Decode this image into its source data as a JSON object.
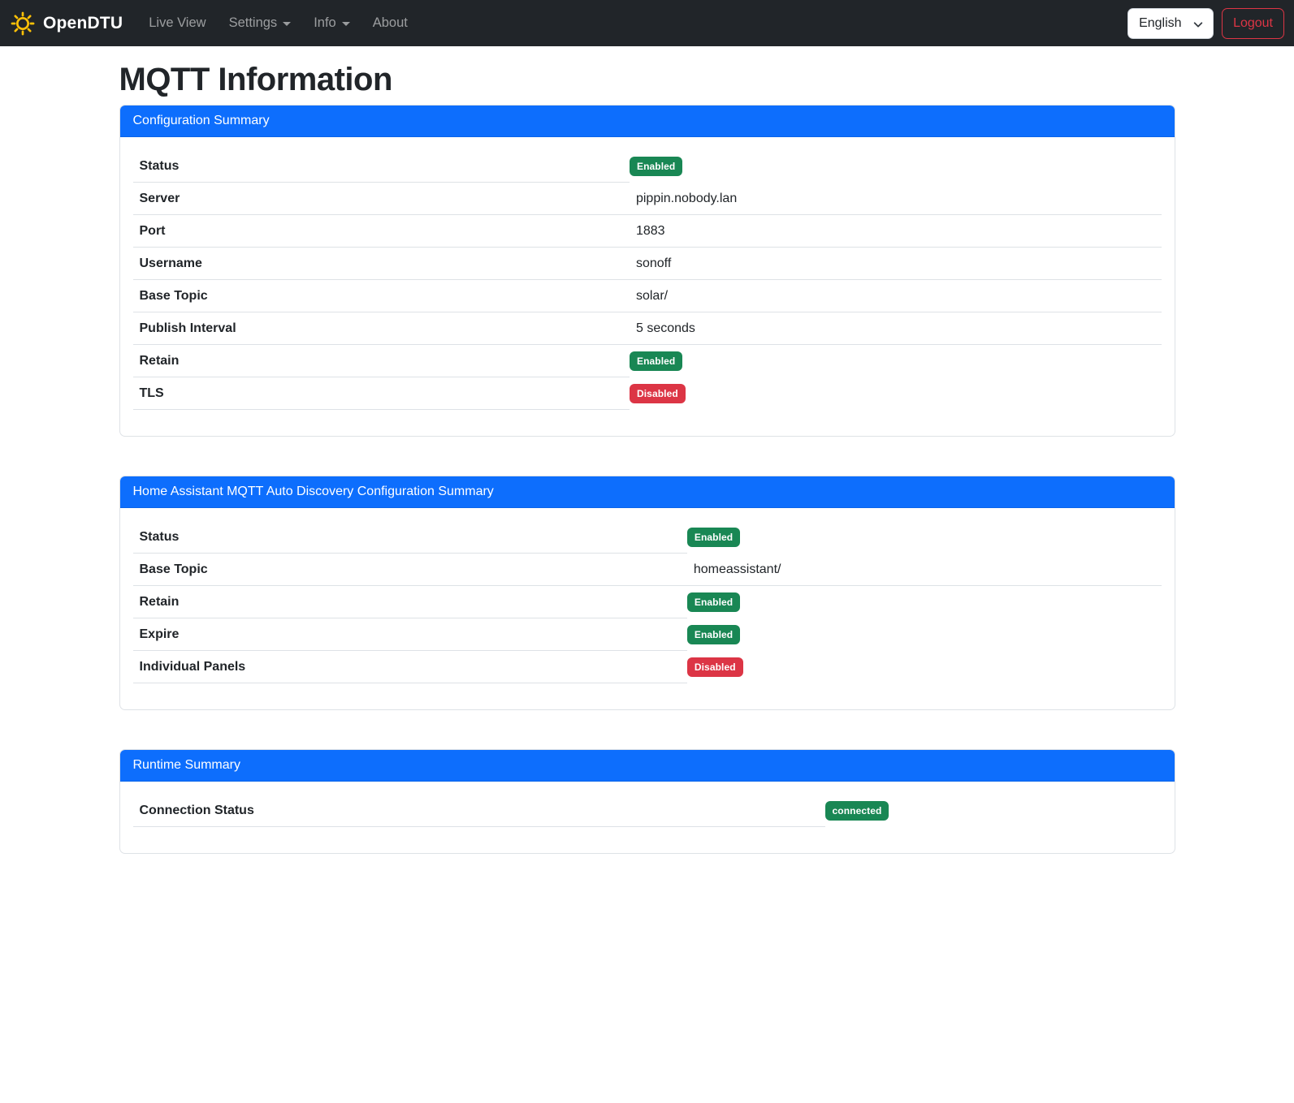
{
  "navbar": {
    "brand": "OpenDTU",
    "items": [
      {
        "label": "Live View",
        "dropdown": false
      },
      {
        "label": "Settings",
        "dropdown": true
      },
      {
        "label": "Info",
        "dropdown": true
      },
      {
        "label": "About",
        "dropdown": false
      }
    ],
    "language_selected": "English",
    "logout_label": "Logout"
  },
  "page": {
    "title": "MQTT Information"
  },
  "cards": [
    {
      "title": "Configuration Summary",
      "rows": [
        {
          "label": "Status",
          "type": "badge",
          "value": "Enabled",
          "variant": "success"
        },
        {
          "label": "Server",
          "type": "text",
          "value": "pippin.nobody.lan"
        },
        {
          "label": "Port",
          "type": "text",
          "value": "1883"
        },
        {
          "label": "Username",
          "type": "text",
          "value": "sonoff"
        },
        {
          "label": "Base Topic",
          "type": "text",
          "value": "solar/"
        },
        {
          "label": "Publish Interval",
          "type": "text",
          "value": "5 seconds"
        },
        {
          "label": "Retain",
          "type": "badge",
          "value": "Enabled",
          "variant": "success"
        },
        {
          "label": "TLS",
          "type": "badge",
          "value": "Disabled",
          "variant": "danger"
        }
      ]
    },
    {
      "title": "Home Assistant MQTT Auto Discovery Configuration Summary",
      "rows": [
        {
          "label": "Status",
          "type": "badge",
          "value": "Enabled",
          "variant": "success"
        },
        {
          "label": "Base Topic",
          "type": "text",
          "value": "homeassistant/"
        },
        {
          "label": "Retain",
          "type": "badge",
          "value": "Enabled",
          "variant": "success"
        },
        {
          "label": "Expire",
          "type": "badge",
          "value": "Enabled",
          "variant": "success"
        },
        {
          "label": "Individual Panels",
          "type": "badge",
          "value": "Disabled",
          "variant": "danger"
        }
      ]
    },
    {
      "title": "Runtime Summary",
      "rows": [
        {
          "label": "Connection Status",
          "type": "badge",
          "value": "connected",
          "variant": "success"
        }
      ]
    }
  ],
  "colors": {
    "primary": "#0d6efd",
    "success": "#198754",
    "danger": "#dc3545",
    "navbar_bg": "#212529",
    "brand_icon": "#ffc107"
  },
  "icons": {
    "brand": "sun-icon",
    "language": "chevron-down-icon",
    "dropdown": "caret-down-icon"
  }
}
